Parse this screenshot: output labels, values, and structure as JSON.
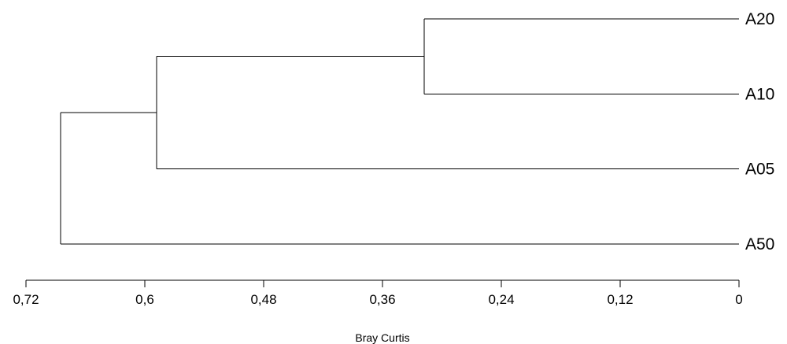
{
  "chart_data": {
    "type": "dendrogram",
    "xlabel": "Bray Curtis",
    "xlim": [
      0.72,
      0
    ],
    "x_ticks": [
      0.72,
      0.6,
      0.48,
      0.36,
      0.24,
      0.12,
      0
    ],
    "x_tick_labels": [
      "0,72",
      "0,6",
      "0,48",
      "0,36",
      "0,24",
      "0,12",
      "0"
    ],
    "leaves": [
      "A20",
      "A10",
      "A05",
      "A50"
    ],
    "merges": [
      {
        "left": "A20",
        "right": "A10",
        "height": 0.318
      },
      {
        "left": "A20+A10",
        "right": "A05",
        "height": 0.588
      },
      {
        "left": "A20+A10+A05",
        "right": "A50",
        "height": 0.685
      }
    ],
    "grid": false,
    "legend": "none"
  },
  "colors": {
    "line": "#000000",
    "text": "#000000",
    "background": "#ffffff"
  }
}
